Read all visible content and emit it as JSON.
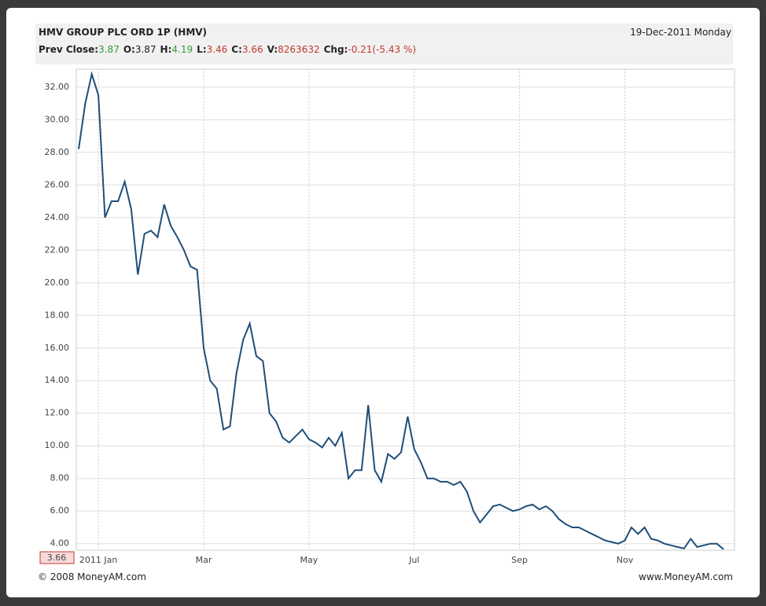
{
  "header": {
    "title": "HMV GROUP PLC ORD 1P (HMV)",
    "date": "19-Dec-2011 Monday",
    "stats": [
      {
        "label": "Prev Close:",
        "value": "3.87",
        "color": "#3a9a3a"
      },
      {
        "label": "O:",
        "value": "3.87",
        "color": "#222222"
      },
      {
        "label": "H:",
        "value": "4.19",
        "color": "#3a9a3a"
      },
      {
        "label": "L:",
        "value": "3.46",
        "color": "#c0392b"
      },
      {
        "label": "C:",
        "value": "3.66",
        "color": "#c0392b"
      },
      {
        "label": "V:",
        "value": "8263632",
        "color": "#c0392b"
      },
      {
        "label": "Chg:",
        "value": "-0.21(-5.43 %)",
        "color": "#c0392b"
      }
    ]
  },
  "chart_data": {
    "type": "line",
    "categories": [
      null,
      null,
      null,
      "2011 Jan",
      null,
      null,
      null,
      null,
      null,
      null,
      null,
      null,
      null,
      null,
      null,
      null,
      null,
      null,
      null,
      "Mar",
      null,
      null,
      null,
      null,
      null,
      null,
      null,
      null,
      null,
      null,
      null,
      null,
      null,
      null,
      null,
      "May",
      null,
      null,
      null,
      null,
      null,
      null,
      null,
      null,
      null,
      null,
      null,
      null,
      null,
      null,
      null,
      "Jul",
      null,
      null,
      null,
      null,
      null,
      null,
      null,
      null,
      null,
      null,
      null,
      null,
      null,
      null,
      null,
      "Sep",
      null,
      null,
      null,
      null,
      null,
      null,
      null,
      null,
      null,
      null,
      null,
      null,
      null,
      null,
      null,
      "Nov",
      null,
      null,
      null,
      null,
      null,
      null,
      null,
      null,
      null,
      null,
      null,
      null,
      null,
      null,
      null
    ],
    "series": [
      {
        "color": "#1f4e79",
        "values": [
          28.2,
          31.0,
          32.8,
          31.5,
          24.0,
          25.0,
          25.0,
          26.2,
          24.5,
          20.5,
          23.0,
          23.2,
          22.8,
          24.8,
          23.5,
          22.8,
          22.0,
          21.0,
          20.8,
          16.0,
          14.0,
          13.5,
          11.0,
          11.2,
          14.5,
          16.5,
          17.5,
          15.5,
          15.2,
          12.0,
          11.5,
          10.5,
          10.2,
          10.6,
          11.0,
          10.4,
          10.2,
          9.9,
          10.5,
          10.0,
          10.8,
          8.0,
          8.5,
          8.5,
          12.5,
          8.5,
          7.8,
          9.5,
          9.2,
          9.6,
          11.8,
          9.8,
          9.0,
          8.0,
          8.0,
          7.8,
          7.8,
          7.6,
          7.8,
          7.2,
          6.0,
          5.3,
          5.8,
          6.3,
          6.4,
          6.2,
          6.0,
          6.1,
          6.3,
          6.4,
          6.1,
          6.3,
          6.0,
          5.5,
          5.2,
          5.0,
          5.0,
          4.8,
          4.6,
          4.4,
          4.2,
          4.1,
          4.0,
          4.2,
          5.0,
          4.6,
          5.0,
          4.3,
          4.2,
          4.0,
          3.9,
          3.8,
          3.7,
          4.3,
          3.8,
          3.9,
          4.0,
          4.0,
          3.66
        ]
      }
    ],
    "last_value_label": "3.66",
    "ylim": [
      3.6,
      33.1
    ],
    "yticks": [
      {
        "value": 4,
        "label": "4.00"
      },
      {
        "value": 6,
        "label": "6.00"
      },
      {
        "value": 8,
        "label": "8.00"
      },
      {
        "value": 10,
        "label": "10.00"
      },
      {
        "value": 12,
        "label": "12.00"
      },
      {
        "value": 14,
        "label": "14.00"
      },
      {
        "value": 16,
        "label": "16.00"
      },
      {
        "value": 18,
        "label": "18.00"
      },
      {
        "value": 20,
        "label": "20.00"
      },
      {
        "value": 22,
        "label": "22.00"
      },
      {
        "value": 24,
        "label": "24.00"
      },
      {
        "value": 26,
        "label": "26.00"
      },
      {
        "value": 28,
        "label": "28.00"
      },
      {
        "value": 30,
        "label": "30.00"
      },
      {
        "value": 32,
        "label": "32.00"
      }
    ],
    "grid": true
  },
  "footer": {
    "left": "© 2008 MoneyAM.com",
    "right": "www.MoneyAM.com"
  }
}
